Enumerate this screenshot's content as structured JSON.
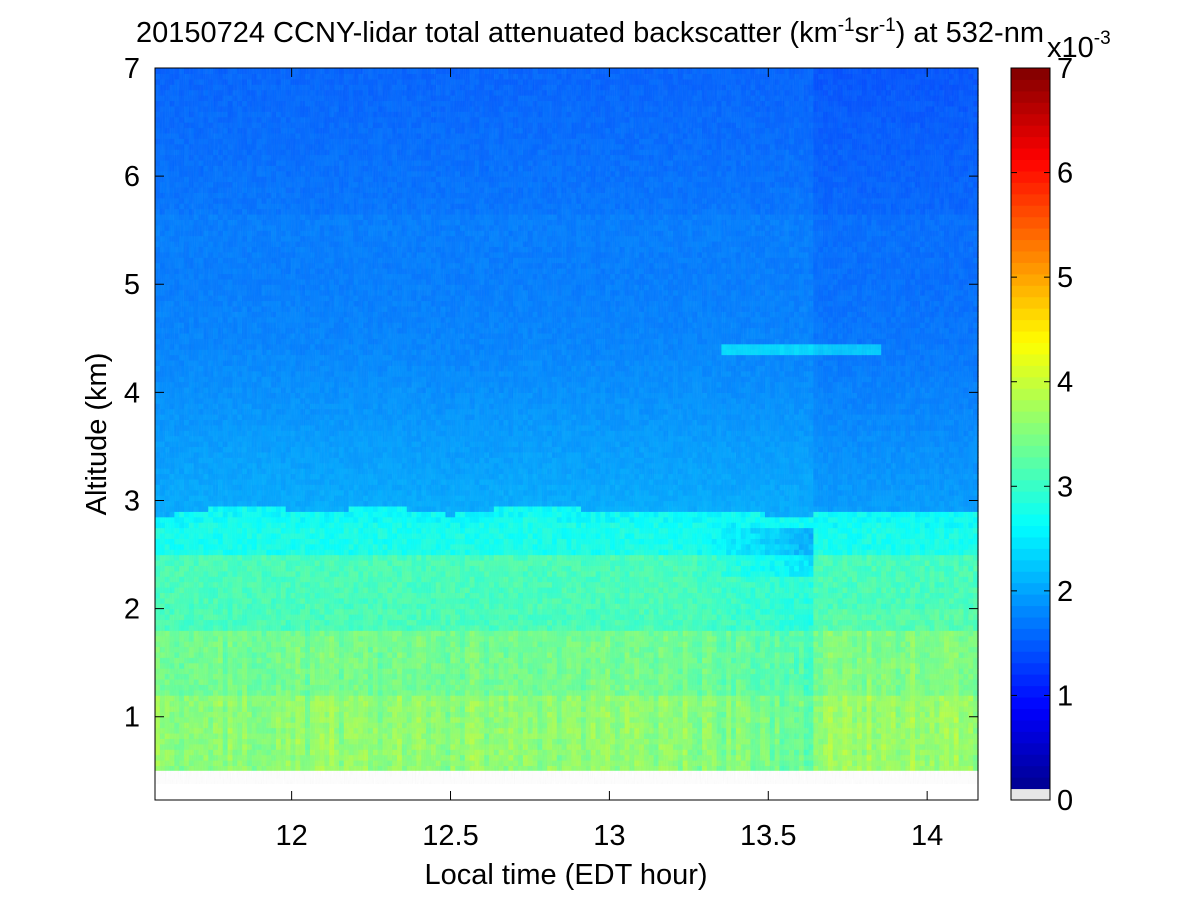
{
  "chart_data": {
    "type": "heatmap",
    "title": {
      "main": "20150724 CCNY-lidar total attenuated backscatter (km",
      "sup1": "-1",
      "mid": "sr",
      "sup2": "-1",
      "tail": ") at 532-nm"
    },
    "xlabel": "Local time (EDT hour)",
    "ylabel": "Altitude (km)",
    "xlim": [
      11.57,
      14.16
    ],
    "ylim": [
      0.23,
      7
    ],
    "xticks": [
      12,
      12.5,
      13,
      13.5,
      14
    ],
    "xtick_labels": [
      "12",
      "12.5",
      "13",
      "13.5",
      "14"
    ],
    "yticks": [
      1,
      2,
      3,
      4,
      5,
      6,
      7
    ],
    "ytick_labels": [
      "1",
      "2",
      "3",
      "4",
      "5",
      "6",
      "7"
    ],
    "data_bottom_altitude_km": 0.5,
    "colorbar": {
      "colormap": "jet",
      "range": [
        0,
        7
      ],
      "ticks": [
        0,
        1,
        2,
        3,
        4,
        5,
        6,
        7
      ],
      "tick_labels": [
        "0",
        "1",
        "2",
        "3",
        "4",
        "5",
        "6",
        "7"
      ],
      "multiplier": {
        "base": "x10",
        "exp": "-3"
      },
      "nan_color": "#e6e6e6"
    },
    "description_fields": {
      "boundary_layer_top_km": [
        [
          11.57,
          2.85
        ],
        [
          11.85,
          2.97
        ],
        [
          12.05,
          2.9
        ],
        [
          12.3,
          2.95
        ],
        [
          12.5,
          2.87
        ],
        [
          12.75,
          2.97
        ],
        [
          13.0,
          2.9
        ],
        [
          13.3,
          2.92
        ],
        [
          13.6,
          2.85
        ],
        [
          13.65,
          2.88
        ],
        [
          13.9,
          2.9
        ],
        [
          14.16,
          2.88
        ]
      ],
      "elevated_layer_km": [
        [
          13.35,
          4.4
        ],
        [
          13.85,
          4.35
        ]
      ],
      "instrument_change_time_hr": 13.64
    }
  }
}
